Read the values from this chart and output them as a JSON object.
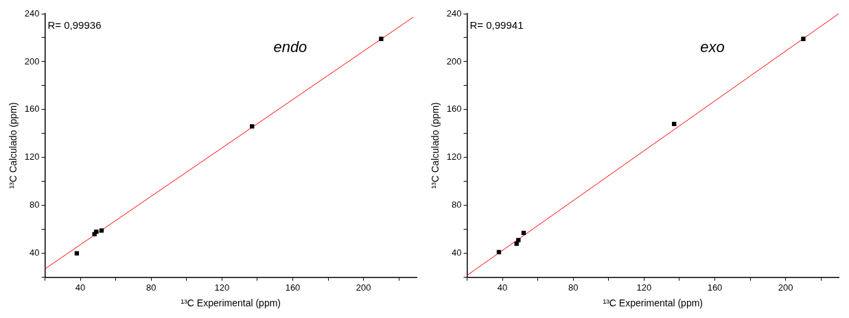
{
  "chart_data": [
    {
      "type": "scatter",
      "xlabel": "¹³C Experimental (ppm)",
      "ylabel": "¹³C Calculado (ppm)",
      "annotations": [
        "R= 0,99936",
        "endo"
      ],
      "grid": false,
      "legend": false,
      "xlim": [
        20,
        230
      ],
      "xticks": [
        {
          "value": 20,
          "label": null
        },
        40,
        {
          "value": 60,
          "label": null
        },
        80,
        {
          "value": 100,
          "label": null
        },
        120,
        {
          "value": 140,
          "label": null
        },
        160,
        {
          "value": 180,
          "label": null
        },
        200,
        {
          "value": 220,
          "label": null
        }
      ],
      "ylim": [
        20,
        240
      ],
      "yticks": [
        {
          "value": 20,
          "label": null
        },
        40,
        {
          "value": 60,
          "label": null
        },
        80,
        {
          "value": 100,
          "label": null
        },
        120,
        {
          "value": 140,
          "label": null
        },
        160,
        {
          "value": 180,
          "label": null
        },
        200,
        {
          "value": 220,
          "label": null
        },
        240
      ],
      "series": [
        {
          "type": "scatter",
          "marker": "square",
          "color": "#000000",
          "x": [
            38,
            48,
            49,
            52,
            137,
            210
          ],
          "values": [
            40,
            56,
            58,
            59,
            146,
            219
          ]
        },
        {
          "type": "line",
          "color": "#ff0000",
          "x": [
            20,
            228
          ],
          "values": [
            27,
            237
          ]
        }
      ]
    },
    {
      "type": "scatter",
      "xlabel": "¹³C Experimental (ppm)",
      "ylabel": "¹³C Calculado (ppm)",
      "annotations": [
        "R= 0,99941",
        "exo"
      ],
      "grid": false,
      "legend": false,
      "xlim": [
        20,
        230
      ],
      "xticks": [
        {
          "value": 20,
          "label": null
        },
        40,
        {
          "value": 60,
          "label": null
        },
        80,
        {
          "value": 100,
          "label": null
        },
        120,
        {
          "value": 140,
          "label": null
        },
        160,
        {
          "value": 180,
          "label": null
        },
        200,
        {
          "value": 220,
          "label": null
        }
      ],
      "ylim": [
        20,
        240
      ],
      "yticks": [
        {
          "value": 20,
          "label": null
        },
        40,
        {
          "value": 60,
          "label": null
        },
        80,
        {
          "value": 100,
          "label": null
        },
        120,
        {
          "value": 140,
          "label": null
        },
        160,
        {
          "value": 180,
          "label": null
        },
        200,
        {
          "value": 220,
          "label": null
        },
        240
      ],
      "series": [
        {
          "type": "scatter",
          "marker": "square",
          "color": "#000000",
          "x": [
            38,
            48,
            49,
            52,
            137,
            210
          ],
          "values": [
            41,
            48,
            51,
            57,
            148,
            219
          ]
        },
        {
          "type": "line",
          "color": "#ff0000",
          "x": [
            20,
            230
          ],
          "values": [
            21.6,
            240
          ]
        }
      ]
    }
  ]
}
